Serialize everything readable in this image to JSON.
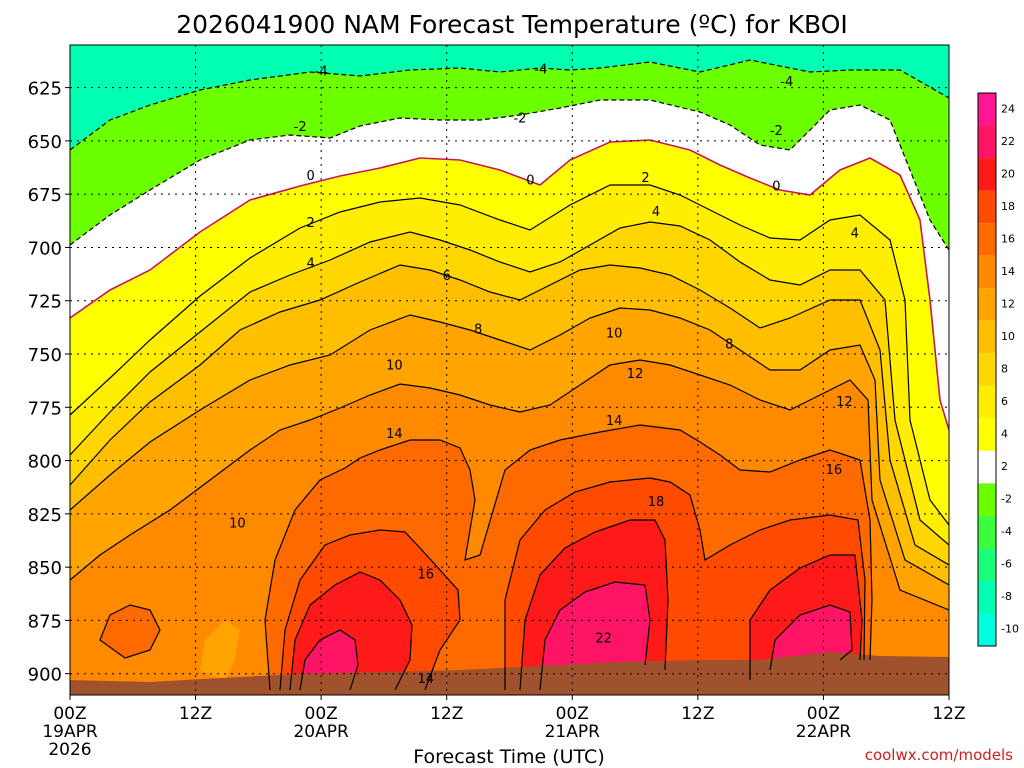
{
  "title": "2026041900 NAM Forecast Temperature (ºC) for KBOI",
  "credit": "coolwx.com/models",
  "chart_data": {
    "type": "heatmap",
    "title": "2026041900 NAM Forecast Temperature (ºC) for KBOI",
    "xlabel": "Forecast Time (UTC)",
    "ylabel": "",
    "x_ticks": [
      {
        "hour": 0,
        "label": "00Z",
        "sub1": "19APR",
        "sub2": "2026"
      },
      {
        "hour": 12,
        "label": "12Z",
        "sub1": "",
        "sub2": ""
      },
      {
        "hour": 24,
        "label": "00Z",
        "sub1": "20APR",
        "sub2": ""
      },
      {
        "hour": 36,
        "label": "12Z",
        "sub1": "",
        "sub2": ""
      },
      {
        "hour": 48,
        "label": "00Z",
        "sub1": "21APR",
        "sub2": ""
      },
      {
        "hour": 60,
        "label": "12Z",
        "sub1": "",
        "sub2": ""
      },
      {
        "hour": 72,
        "label": "00Z",
        "sub1": "22APR",
        "sub2": ""
      },
      {
        "hour": 84,
        "label": "12Z",
        "sub1": "",
        "sub2": ""
      }
    ],
    "xlim": [
      0,
      84
    ],
    "y_ticks": [
      625,
      650,
      675,
      700,
      725,
      750,
      775,
      800,
      825,
      850,
      875,
      900
    ],
    "ylim": [
      910,
      605
    ],
    "grid": true,
    "colorbar": {
      "tick_labels": [
        "24",
        "22",
        "20",
        "18",
        "16",
        "14",
        "12",
        "10",
        "8",
        "6",
        "4",
        "2",
        "-2",
        "-4",
        "-6",
        "-8",
        "-10"
      ],
      "colors": [
        "#ff1493",
        "#ff1466",
        "#ff1a1a",
        "#ff4a00",
        "#ff6a00",
        "#ff8a00",
        "#ffa400",
        "#ffbe00",
        "#ffd600",
        "#ffee00",
        "#ffff00",
        "#ffffff",
        "#6cff00",
        "#3aff3a",
        "#1aff7a",
        "#00ffb0",
        "#00ffe0"
      ]
    },
    "contour_labels": [
      {
        "hour": 24,
        "p": 617,
        "text": "-4"
      },
      {
        "hour": 45,
        "p": 616,
        "text": "-4"
      },
      {
        "hour": 68.5,
        "p": 622,
        "text": "-4"
      },
      {
        "hour": 22,
        "p": 643,
        "text": "-2"
      },
      {
        "hour": 43,
        "p": 639,
        "text": "-2"
      },
      {
        "hour": 67.5,
        "p": 645,
        "text": "-2"
      },
      {
        "hour": 23,
        "p": 666,
        "text": "0"
      },
      {
        "hour": 44,
        "p": 668,
        "text": "0"
      },
      {
        "hour": 67.5,
        "p": 671,
        "text": "0"
      },
      {
        "hour": 23,
        "p": 688,
        "text": "2"
      },
      {
        "hour": 55,
        "p": 667,
        "text": "2"
      },
      {
        "hour": 23,
        "p": 707,
        "text": "4"
      },
      {
        "hour": 56,
        "p": 683,
        "text": "4"
      },
      {
        "hour": 75,
        "p": 693,
        "text": "4"
      },
      {
        "hour": 36,
        "p": 713,
        "text": "6"
      },
      {
        "hour": 39,
        "p": 738,
        "text": "8"
      },
      {
        "hour": 63,
        "p": 745,
        "text": "8"
      },
      {
        "hour": 31,
        "p": 755,
        "text": "10"
      },
      {
        "hour": 52,
        "p": 740,
        "text": "10"
      },
      {
        "hour": 16,
        "p": 829,
        "text": "10"
      },
      {
        "hour": 54,
        "p": 759,
        "text": "12"
      },
      {
        "hour": 74,
        "p": 772,
        "text": "12"
      },
      {
        "hour": 31,
        "p": 787,
        "text": "14"
      },
      {
        "hour": 52,
        "p": 781,
        "text": "14"
      },
      {
        "hour": 34,
        "p": 902,
        "text": "14"
      },
      {
        "hour": 34,
        "p": 853,
        "text": "16"
      },
      {
        "hour": 73,
        "p": 804,
        "text": "16"
      },
      {
        "hour": 56,
        "p": 819,
        "text": "18"
      },
      {
        "hour": 51,
        "p": 883,
        "text": "22"
      }
    ]
  }
}
